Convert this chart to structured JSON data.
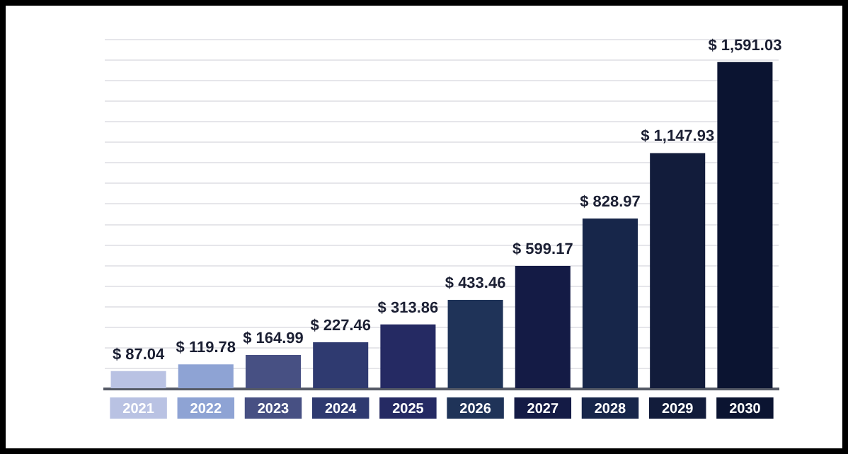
{
  "chart_data": {
    "type": "bar",
    "categories": [
      "2021",
      "2022",
      "2023",
      "2024",
      "2025",
      "2026",
      "2027",
      "2028",
      "2029",
      "2030"
    ],
    "values": [
      87.04,
      119.78,
      164.99,
      227.46,
      313.86,
      433.46,
      599.17,
      828.97,
      1147.93,
      1591.03
    ],
    "value_labels": [
      "$ 87.04",
      "$ 119.78",
      "$ 164.99",
      "$ 227.46",
      "$ 313.86",
      "$ 433.46",
      "$ 599.17",
      "$ 828.97",
      "$ 1,147.93",
      "$ 1,591.03"
    ],
    "colors": [
      "#b9c2e3",
      "#8ea3d4",
      "#475083",
      "#2f3a70",
      "#252a63",
      "#1f3358",
      "#141b45",
      "#17264a",
      "#121c3b",
      "#0b1431"
    ],
    "ylim": [
      0,
      1700
    ],
    "yticks": [
      {
        "value": 0,
        "label": null
      },
      {
        "value": 100,
        "label": null
      },
      {
        "value": 200,
        "label": null
      },
      {
        "value": 300,
        "label": null
      },
      {
        "value": 400,
        "label": null
      },
      {
        "value": 500,
        "label": null
      },
      {
        "value": 600,
        "label": null
      },
      {
        "value": 700,
        "label": null
      },
      {
        "value": 800,
        "label": null
      },
      {
        "value": 900,
        "label": null
      },
      {
        "value": 1000,
        "label": null
      },
      {
        "value": 1100,
        "label": null
      },
      {
        "value": 1200,
        "label": null
      },
      {
        "value": 1300,
        "label": null
      },
      {
        "value": 1400,
        "label": null
      },
      {
        "value": 1500,
        "label": null
      },
      {
        "value": 1600,
        "label": null
      },
      {
        "value": 1700,
        "label": null
      }
    ],
    "grid": "y",
    "tick_labels": "x"
  }
}
